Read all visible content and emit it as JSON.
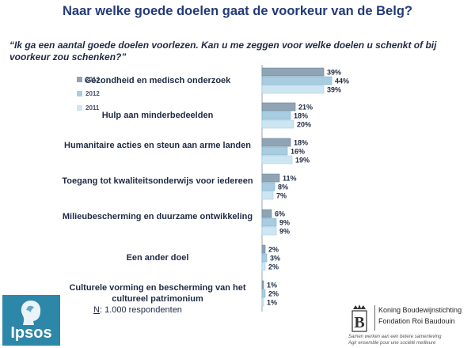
{
  "title": "Naar welke goede doelen gaat de voorkeur van de Belg?",
  "question": "“Ik ga een aantal goede doelen voorlezen. Kan u me zeggen voor welke doelen u schenkt of bij voorkeur zou schenken?”",
  "footnote": {
    "n_prefix": "N",
    "n_text": ": 1.000 respondenten"
  },
  "logos": {
    "ipsos": "Ipsos",
    "kbs_line1": "Koning Boudewijnstichting",
    "kbs_line2": "Fondation Roi Baudouin",
    "kbs_tag1": "Samen werken aan een betere samenleving",
    "kbs_tag2": "Agir ensemble pour une société meilleure"
  },
  "colors": {
    "2013": "#8fa5b6",
    "2012": "#a8cde0",
    "2011": "#cde6f2",
    "text": "#1f2a44",
    "title": "#233a78"
  },
  "chart_data": {
    "type": "bar",
    "orientation": "horizontal",
    "categories": [
      "Gezondheid en medisch onderzoek",
      "Hulp aan minderbedeelden",
      "Humanitaire acties en steun aan arme landen",
      "Toegang tot kwaliteitsonderwijs voor iedereen",
      "Milieubescherming en duurzame ontwikkeling",
      "Een ander doel",
      "Culturele vorming en bescherming van het cultureel patrimonium"
    ],
    "series": [
      {
        "name": "2013",
        "values": [
          39,
          21,
          18,
          11,
          6,
          2,
          1
        ]
      },
      {
        "name": "2012",
        "values": [
          44,
          18,
          16,
          8,
          9,
          3,
          2
        ]
      },
      {
        "name": "2011",
        "values": [
          39,
          20,
          19,
          7,
          9,
          2,
          1
        ]
      }
    ],
    "value_suffix": "%",
    "legend": [
      "2013",
      "2012",
      "2011"
    ],
    "legend_position": "top-left"
  }
}
